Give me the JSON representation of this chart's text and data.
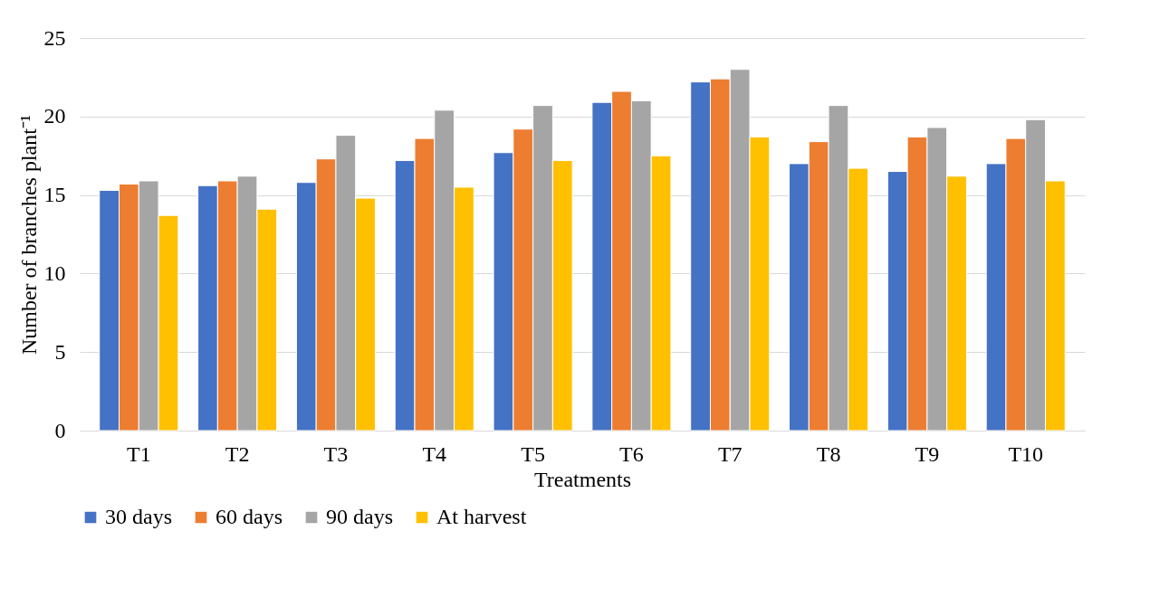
{
  "chart_data": {
    "type": "bar",
    "xlabel": "Treatments",
    "ylabel": "Number of branches plant⁻¹",
    "categories": [
      "T1",
      "T2",
      "T3",
      "T4",
      "T5",
      "T6",
      "T7",
      "T8",
      "T9",
      "T10"
    ],
    "series": [
      {
        "name": "30 days",
        "color": "#4472c4",
        "values": [
          15.3,
          15.6,
          15.8,
          17.2,
          17.7,
          20.9,
          22.2,
          17.0,
          16.5,
          17.0
        ]
      },
      {
        "name": "60 days",
        "color": "#ed7d31",
        "values": [
          15.7,
          15.9,
          17.3,
          18.6,
          19.2,
          21.6,
          22.4,
          18.4,
          18.7,
          18.6
        ]
      },
      {
        "name": "90 days",
        "color": "#a5a5a5",
        "values": [
          15.9,
          16.2,
          18.8,
          20.4,
          20.7,
          21.0,
          23.0,
          20.7,
          19.3,
          19.8
        ]
      },
      {
        "name": "At harvest",
        "color": "#ffc000",
        "values": [
          13.7,
          14.1,
          14.8,
          15.5,
          17.2,
          17.5,
          18.7,
          16.7,
          16.2,
          15.9
        ]
      }
    ],
    "ylim": [
      0,
      25
    ],
    "yticks": [
      0,
      5,
      10,
      15,
      20,
      25
    ],
    "grid": "y",
    "legend": "bottom"
  }
}
